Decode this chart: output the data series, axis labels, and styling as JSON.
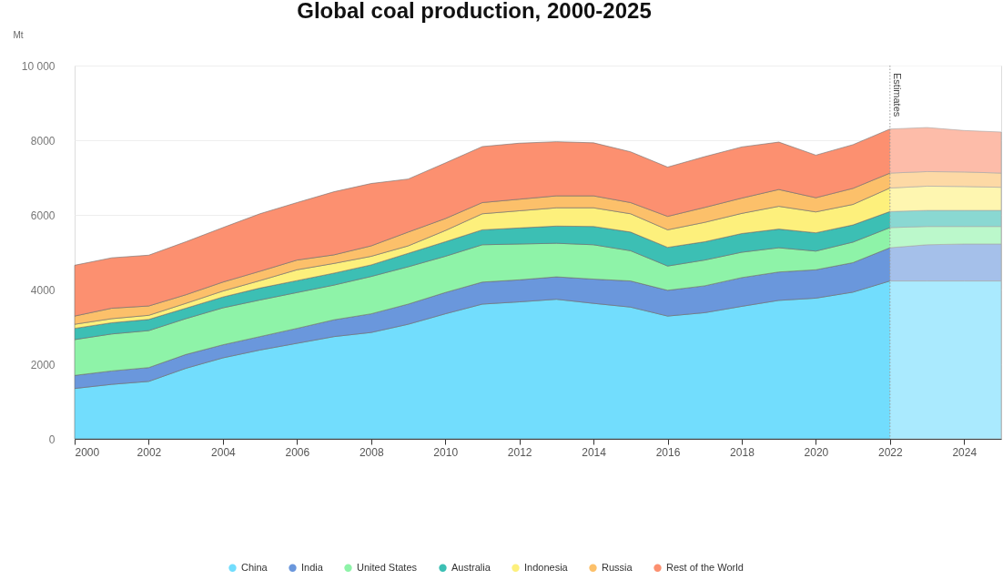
{
  "chart_data": {
    "type": "area",
    "title": "Global coal production, 2000-2025",
    "ylabel": "Mt",
    "x": [
      2000,
      2001,
      2002,
      2003,
      2004,
      2005,
      2006,
      2007,
      2008,
      2009,
      2010,
      2011,
      2012,
      2013,
      2014,
      2015,
      2016,
      2017,
      2018,
      2019,
      2020,
      2021,
      2022,
      2023,
      2024,
      2025
    ],
    "stacked": true,
    "series": [
      {
        "name": "China",
        "color": "#72ddfd",
        "values": [
          1350,
          1460,
          1540,
          1890,
          2170,
          2380,
          2560,
          2740,
          2850,
          3070,
          3350,
          3610,
          3670,
          3740,
          3630,
          3530,
          3290,
          3380,
          3550,
          3710,
          3770,
          3930,
          4230,
          4230,
          4230,
          4230
        ]
      },
      {
        "name": "India",
        "color": "#6a97dc",
        "values": [
          350,
          360,
          370,
          370,
          350,
          360,
          400,
          450,
          500,
          540,
          570,
          590,
          590,
          600,
          650,
          700,
          690,
          720,
          770,
          760,
          760,
          790,
          890,
          970,
          990,
          990
        ]
      },
      {
        "name": "United States",
        "color": "#8ef3a8",
        "values": [
          960,
          990,
          990,
          960,
          990,
          980,
          960,
          930,
          1000,
          1000,
          970,
          1000,
          960,
          900,
          920,
          810,
          650,
          690,
          680,
          650,
          500,
          550,
          540,
          490,
          470,
          470
        ]
      },
      {
        "name": "Australia",
        "color": "#3cbfb4",
        "values": [
          300,
          300,
          300,
          280,
          290,
          320,
          320,
          320,
          310,
          360,
          390,
          400,
          430,
          460,
          490,
          500,
          500,
          490,
          500,
          500,
          490,
          460,
          430,
          430,
          430,
          430
        ]
      },
      {
        "name": "Indonesia",
        "color": "#fdf07c",
        "values": [
          110,
          110,
          110,
          130,
          160,
          200,
          290,
          260,
          230,
          200,
          300,
          430,
          460,
          490,
          500,
          490,
          470,
          520,
          540,
          610,
          560,
          550,
          630,
          650,
          640,
          620
        ]
      },
      {
        "name": "Russia",
        "color": "#fcc06a",
        "values": [
          220,
          280,
          250,
          230,
          240,
          250,
          260,
          230,
          280,
          370,
          320,
          300,
          310,
          320,
          320,
          300,
          360,
          400,
          410,
          450,
          380,
          430,
          400,
          390,
          390,
          380
        ]
      },
      {
        "name": "Rest of the World",
        "color": "#fc9070",
        "values": [
          1360,
          1350,
          1360,
          1420,
          1460,
          1540,
          1540,
          1690,
          1670,
          1420,
          1490,
          1500,
          1500,
          1450,
          1420,
          1360,
          1320,
          1360,
          1370,
          1270,
          1140,
          1170,
          1180,
          1180,
          1110,
          1100
        ]
      }
    ],
    "xlim": [
      2000,
      2025
    ],
    "xticks": [
      2000,
      2002,
      2004,
      2006,
      2008,
      2010,
      2012,
      2014,
      2016,
      2018,
      2020,
      2022,
      2024
    ],
    "ylim": [
      0,
      10000
    ],
    "yticks": [
      0,
      2000,
      4000,
      6000,
      8000,
      {
        "value": 10000,
        "label": "10 000"
      }
    ],
    "ref_lines": [
      {
        "axis": "x",
        "value": 2022,
        "label": "Estimates",
        "line_style": "dotted",
        "color": "#9a9a9a"
      }
    ],
    "bands": [
      {
        "axis": "x",
        "from": 2022,
        "to": 2025,
        "color": "#ffffff"
      }
    ],
    "grid": "y",
    "legend": "bottom"
  }
}
